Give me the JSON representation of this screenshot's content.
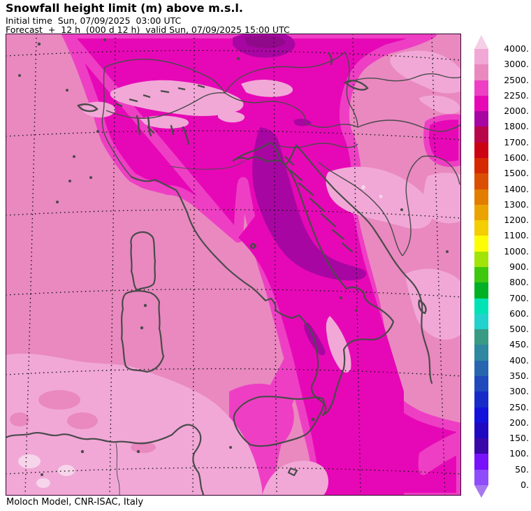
{
  "header": {
    "title": "Snowfall height limit (m) above m.s.l.",
    "init_line": "Initial time  Sun, 07/09/2025  03:00 UTC",
    "forecast_line": "Forecast  +  12 h  (000 d 12 h)  valid Sun, 07/09/2025 15:00 UTC"
  },
  "footer": {
    "credit": "Moloch Model, CNR-ISAC, Italy"
  },
  "colorbar": {
    "unit": "m",
    "ticks": [
      "4000.",
      "3000.",
      "2500.",
      "2250.",
      "2000.",
      "1800.",
      "1700.",
      "1600.",
      "1500.",
      "1400.",
      "1300.",
      "1200.",
      "1100.",
      "1000.",
      "900.",
      "800.",
      "700.",
      "600.",
      "500.",
      "450.",
      "400.",
      "350.",
      "300.",
      "250.",
      "200.",
      "150.",
      "100.",
      "50.",
      "0."
    ],
    "segment_colors_top_to_bottom": [
      "#f1a8d7",
      "#e989c0",
      "#ef3fc4",
      "#e608b6",
      "#a806a2",
      "#b9054a",
      "#cb0313",
      "#d62801",
      "#da4f02",
      "#e27d00",
      "#eba301",
      "#f4cd02",
      "#fdfd05",
      "#a2e408",
      "#3fc80e",
      "#02b023",
      "#02e3b5",
      "#22d2cd",
      "#3a9b84",
      "#2d88a0",
      "#2766ae",
      "#1f49bc",
      "#172bc9",
      "#1212dc",
      "#2008c0",
      "#3a07a8",
      "#7712fb",
      "#8f4cfa"
    ],
    "above_max_color": "#f4cfe5",
    "below_min_color": "#a877f0"
  },
  "map": {
    "palette": {
      "level_above_4000": "#f6d5ea",
      "level_4000_3000": "#f1a8d7",
      "level_3000_2500": "#e989c0",
      "level_2500_2250": "#ee3fc4",
      "level_2250_2000": "#e608b6",
      "level_2000_1800": "#a806a2",
      "level_dark_core": "#90098a",
      "coastline": "#4a4a4a",
      "graticule": "#141414",
      "frame": "#2d052b"
    }
  }
}
